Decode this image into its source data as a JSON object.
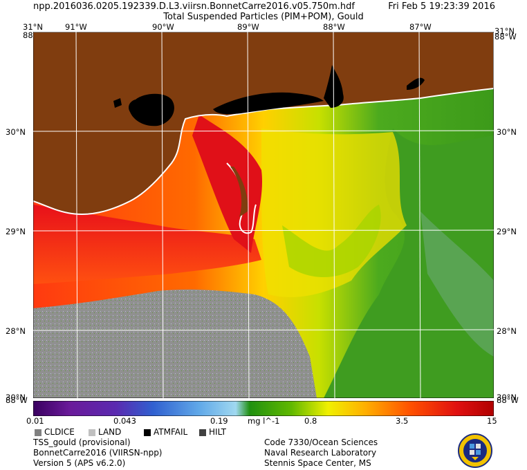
{
  "header": {
    "filename": "npp.2016036.0205.192339.D.L3.viirsn.BonnetCarre2016.v05.750m.hdf",
    "datetime": "Fri Feb  5 19:23:39 2016",
    "product_title": "Total Suspended Particles (PIM+POM), Gould"
  },
  "map": {
    "lon_labels": [
      "91°W",
      "90°W",
      "89°W",
      "88°W",
      "87°W"
    ],
    "lat_labels": [
      "30°N",
      "29°N",
      "28°N"
    ],
    "corner_labels": {
      "top_left_lat": "31°N",
      "top_left_lon": "88°W",
      "top_right_lat": "31°N",
      "top_right_lon": "88°W",
      "bottom_left_lat": "30°N",
      "bottom_left_lon": "88°W",
      "bottom_right_lat": "30°N",
      "bottom_right_lon": "88°W"
    },
    "colors": {
      "land": "#803d0f",
      "cloud_ice": "#8c8c8c",
      "atm_fail": "#000000",
      "coast": "#ffffff"
    }
  },
  "colorbar": {
    "labels": [
      "0.01",
      "0.043",
      "0.19",
      "0.8",
      "3.5",
      "15"
    ],
    "units": "mg l^-1",
    "scale": "log",
    "range": [
      0.01,
      15
    ]
  },
  "legend": [
    {
      "label": "CLDICE",
      "color": "#808080"
    },
    {
      "label": "LAND",
      "color": "#c0c0c0"
    },
    {
      "label": "ATMFAIL",
      "color": "#000000"
    },
    {
      "label": "HILT",
      "color": "#404040"
    }
  ],
  "info_left": [
    "TSS_gould (provisional)",
    "BonnetCarre2016 (VIIRSN-npp)",
    "Version 5 (APS v6.2.0)"
  ],
  "info_right": [
    "Code 7330/Ocean Sciences",
    "Naval Research Laboratory",
    "Stennis Space Center, MS"
  ]
}
